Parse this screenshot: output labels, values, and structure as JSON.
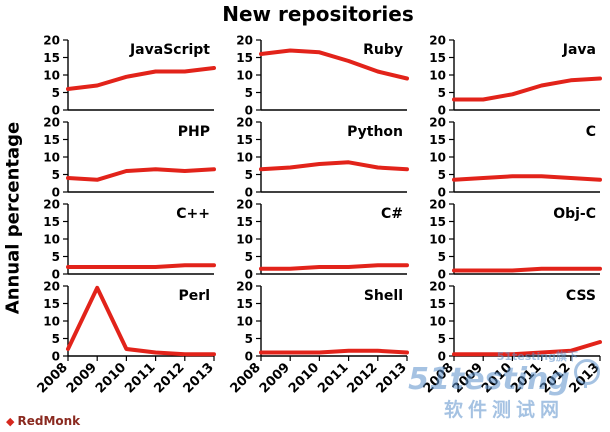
{
  "title": "New repositories",
  "ylabel": "Annual percentage",
  "chart_data": {
    "type": "line",
    "title": "New repositories",
    "xlabel": "",
    "ylabel": "Annual percentage",
    "x": [
      2008,
      2009,
      2010,
      2011,
      2012,
      2013
    ],
    "ylim": [
      0,
      20
    ],
    "yticks": [
      0,
      5,
      10,
      15,
      20
    ],
    "grid": "off",
    "legend": "none",
    "line_color": "#e2231a",
    "panels": [
      {
        "label": "JavaScript",
        "values": [
          6,
          7,
          9.5,
          11,
          11,
          12
        ]
      },
      {
        "label": "Ruby",
        "values": [
          16,
          17,
          16.5,
          14,
          11,
          9
        ]
      },
      {
        "label": "Java",
        "values": [
          3,
          3,
          4.5,
          7,
          8.5,
          9
        ]
      },
      {
        "label": "PHP",
        "values": [
          4,
          3.5,
          6,
          6.5,
          6,
          6.5
        ]
      },
      {
        "label": "Python",
        "values": [
          6.5,
          7,
          8,
          8.5,
          7,
          6.5
        ]
      },
      {
        "label": "C",
        "values": [
          3.5,
          4,
          4.5,
          4.5,
          4,
          3.5
        ]
      },
      {
        "label": "C++",
        "values": [
          2,
          2,
          2,
          2,
          2.5,
          2.5
        ]
      },
      {
        "label": "C#",
        "values": [
          1.5,
          1.5,
          2,
          2,
          2.5,
          2.5
        ]
      },
      {
        "label": "Obj-C",
        "values": [
          1,
          1,
          1,
          1.5,
          1.5,
          1.5
        ]
      },
      {
        "label": "Perl",
        "values": [
          2,
          19.5,
          2,
          1,
          0.5,
          0.5
        ]
      },
      {
        "label": "Shell",
        "values": [
          1,
          1,
          1,
          1.5,
          1.5,
          1
        ]
      },
      {
        "label": "CSS",
        "values": [
          0.5,
          0.5,
          0.5,
          1,
          1.5,
          4
        ]
      }
    ]
  },
  "footer": {
    "brand": "RedMonk"
  },
  "watermark": {
    "top": "51testing旗下",
    "main": "51testing",
    "sub": "软件测试网"
  }
}
